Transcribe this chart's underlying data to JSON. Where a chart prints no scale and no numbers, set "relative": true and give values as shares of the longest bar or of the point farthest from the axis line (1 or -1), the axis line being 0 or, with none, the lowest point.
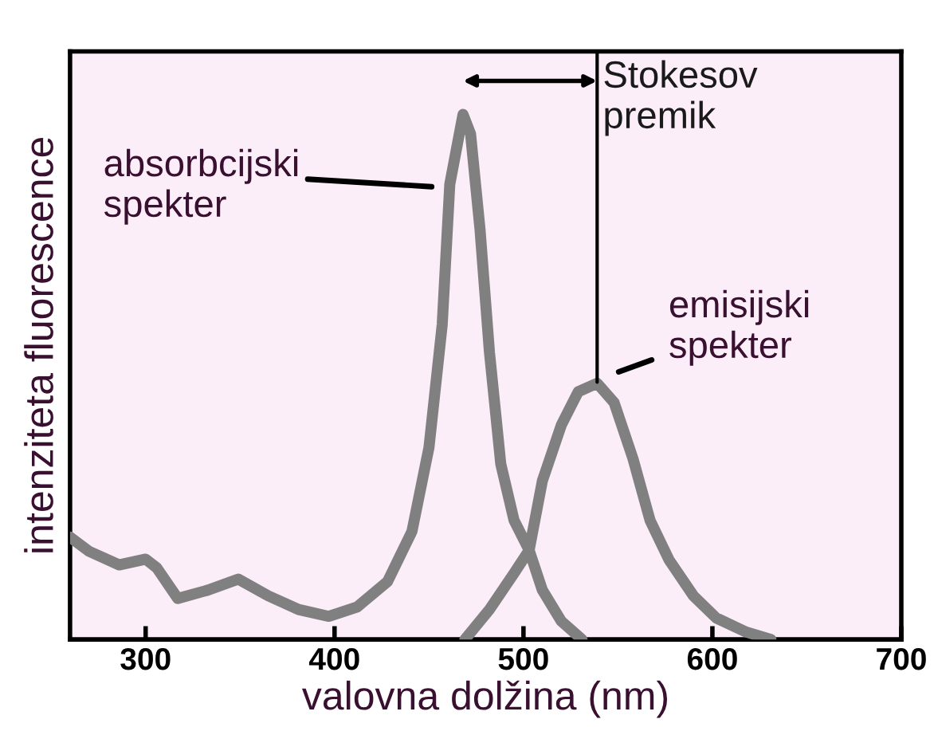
{
  "chart_data": {
    "type": "line",
    "relative": true,
    "xlabel": "valovna dolžina (nm)",
    "ylabel": "intenziteta fluorescence",
    "xlim": [
      260,
      700
    ],
    "xticks": [
      300,
      400,
      500,
      600,
      700
    ],
    "tick_labels": "x",
    "grid": false,
    "legend": false,
    "marker": "none",
    "line_style": "solid",
    "series": [
      {
        "color": "#808080",
        "x": [
          260,
          270,
          286,
          300,
          306,
          317,
          333,
          349,
          365,
          381,
          397,
          412,
          428,
          441,
          450,
          457,
          461,
          468,
          472,
          477,
          482,
          488,
          495,
          503,
          510,
          520,
          531
        ],
        "values": [
          0.195,
          0.168,
          0.142,
          0.153,
          0.136,
          0.078,
          0.094,
          0.115,
          0.083,
          0.057,
          0.044,
          0.062,
          0.11,
          0.206,
          0.366,
          0.6,
          0.867,
          1.0,
          0.963,
          0.781,
          0.547,
          0.334,
          0.227,
          0.17,
          0.094,
          0.035,
          0
        ]
      },
      {
        "color": "#808080",
        "x": [
          469,
          482,
          495,
          503,
          510,
          520,
          529,
          539,
          548,
          558,
          567,
          577,
          590,
          602,
          618,
          631
        ],
        "values": [
          0,
          0.057,
          0.126,
          0.17,
          0.302,
          0.408,
          0.472,
          0.488,
          0.451,
          0.344,
          0.227,
          0.152,
          0.083,
          0.041,
          0.014,
          0
        ]
      }
    ],
    "annotations": [
      "absorbcijski\nspekter",
      "emisijski\nspekter",
      {
        "text": "Stokesov\npremik",
        "x": 539,
        "y": 0.49
      }
    ]
  }
}
